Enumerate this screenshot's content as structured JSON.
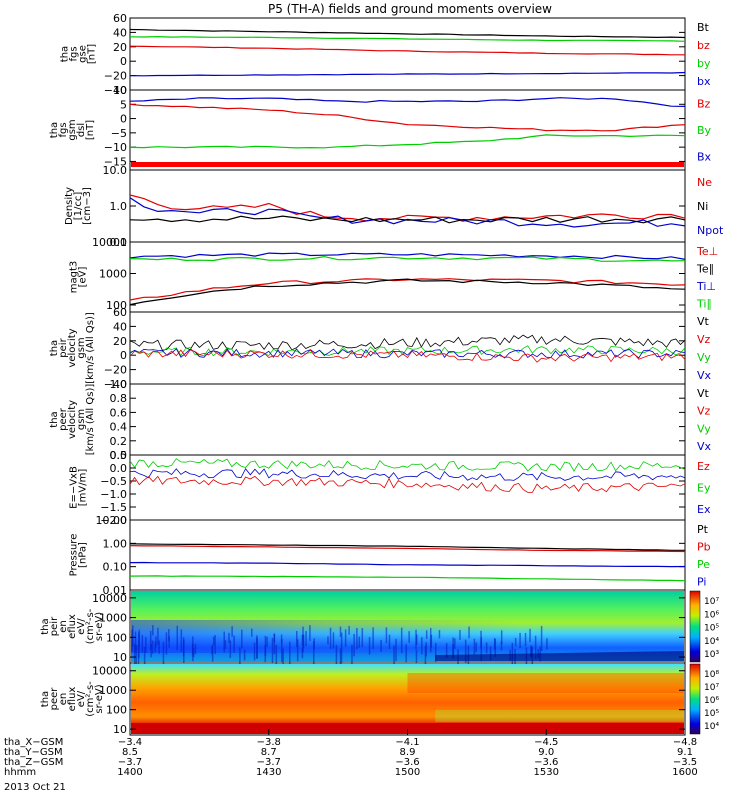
{
  "title": "P5 (TH-A) fields and ground moments overview",
  "colors": {
    "black": "#000000",
    "red": "#e00000",
    "green": "#00cc00",
    "blue": "#0000cc",
    "ticks_red": "#ff0000"
  },
  "chart_data": [
    {
      "type": "line",
      "ylabel": [
        "tha",
        "fgs",
        "gse",
        "[nT]"
      ],
      "yticks": [
        "60",
        "40",
        "20",
        "0",
        "−20",
        "−40"
      ],
      "ylim": [
        -40,
        60
      ],
      "legend": [
        {
          "name": "Bt",
          "color": "#000000"
        },
        {
          "name": "bz",
          "color": "#e00000"
        },
        {
          "name": "by",
          "color": "#00cc00"
        },
        {
          "name": "bx",
          "color": "#0000cc"
        }
      ],
      "series": [
        {
          "name": "Bt",
          "color": "#000000",
          "x": [
            1400,
            1430,
            1500,
            1530,
            1600
          ],
          "y": [
            44,
            41,
            38,
            35,
            33
          ]
        },
        {
          "name": "by",
          "color": "#00cc00",
          "x": [
            1400,
            1430,
            1500,
            1530,
            1600
          ],
          "y": [
            34,
            33,
            31,
            29,
            28
          ]
        },
        {
          "name": "bz",
          "color": "#e00000",
          "x": [
            1400,
            1430,
            1500,
            1530,
            1600
          ],
          "y": [
            21,
            18,
            14,
            11,
            9
          ]
        },
        {
          "name": "bx",
          "color": "#0000cc",
          "x": [
            1400,
            1430,
            1500,
            1530,
            1600
          ],
          "y": [
            -20,
            -19,
            -18,
            -17,
            -16
          ]
        }
      ]
    },
    {
      "type": "line",
      "ylabel": [
        "tha",
        "fgs",
        "gsm",
        "dsl",
        "[nT]"
      ],
      "yticks": [
        "10",
        "5",
        "0",
        "−5",
        "−10",
        "−15"
      ],
      "ylim": [
        -18,
        10
      ],
      "legend": [
        {
          "name": "Bz",
          "color": "#e00000"
        },
        {
          "name": "By",
          "color": "#00cc00"
        },
        {
          "name": "Bx",
          "color": "#0000cc"
        }
      ],
      "series": [
        {
          "name": "Bx",
          "color": "#0000cc",
          "x": [
            1400,
            1415,
            1430,
            1445,
            1500,
            1515,
            1530,
            1545,
            1600
          ],
          "y": [
            6,
            7,
            7,
            6,
            6,
            6,
            7,
            7,
            4
          ]
        },
        {
          "name": "Bz",
          "color": "#e00000",
          "x": [
            1400,
            1415,
            1430,
            1445,
            1500,
            1515,
            1530,
            1545,
            1600
          ],
          "y": [
            5,
            4,
            3,
            1,
            -2,
            -3,
            -4,
            -4,
            -2
          ]
        },
        {
          "name": "By",
          "color": "#00cc00",
          "x": [
            1400,
            1415,
            1430,
            1445,
            1500,
            1515,
            1530,
            1545,
            1600
          ],
          "y": [
            -10,
            -10,
            -10,
            -10,
            -9,
            -8,
            -6,
            -6,
            -6
          ]
        }
      ]
    },
    {
      "type": "line",
      "ylabel": [
        "Density",
        "[1/cc]",
        "[cm−3]"
      ],
      "yscale": "log",
      "yticks": [
        "10.0",
        "1.0",
        "0.1"
      ],
      "ylim": [
        0.1,
        10
      ],
      "legend": [
        {
          "name": "Ne",
          "color": "#e00000"
        },
        {
          "name": "Ni",
          "color": "#000000"
        },
        {
          "name": "Npot",
          "color": "#0000cc"
        }
      ],
      "series": [
        {
          "name": "Ne",
          "color": "#e00000",
          "x": [
            1400,
            1405,
            1410,
            1415,
            1420,
            1425,
            1430,
            1440,
            1500,
            1520,
            1540,
            1600
          ],
          "y": [
            2,
            1.2,
            1.0,
            0.9,
            0.8,
            0.9,
            1.0,
            0.55,
            0.45,
            0.5,
            0.55,
            0.6
          ]
        },
        {
          "name": "Npot",
          "color": "#0000cc",
          "x": [
            1400,
            1405,
            1410,
            1415,
            1420,
            1425,
            1430,
            1440,
            1500,
            1520,
            1540,
            1600
          ],
          "y": [
            1.6,
            0.9,
            0.8,
            0.6,
            0.7,
            0.8,
            0.7,
            0.45,
            0.4,
            0.38,
            0.32,
            0.35
          ]
        },
        {
          "name": "Ni",
          "color": "#000000",
          "x": [
            1400,
            1410,
            1420,
            1430,
            1440,
            1500,
            1520,
            1540,
            1600
          ],
          "y": [
            0.5,
            0.45,
            0.45,
            0.45,
            0.42,
            0.42,
            0.42,
            0.45,
            0.45
          ]
        }
      ]
    },
    {
      "type": "line",
      "ylabel": [
        "magt3",
        "[eV]"
      ],
      "yscale": "log",
      "yticks": [
        "10000",
        "1000",
        "100"
      ],
      "ylim": [
        60,
        10000
      ],
      "legend": [
        {
          "name": "Te⊥",
          "color": "#e00000"
        },
        {
          "name": "Te∥",
          "color": "#000000"
        },
        {
          "name": "Ti⊥",
          "color": "#0000cc"
        },
        {
          "name": "Ti∥",
          "color": "#00cc00"
        }
      ],
      "series": [
        {
          "name": "Ti⊥",
          "color": "#0000cc",
          "x": [
            1400,
            1430,
            1500,
            1530,
            1600
          ],
          "y": [
            3500,
            4000,
            4000,
            3700,
            3000
          ]
        },
        {
          "name": "Ti∥",
          "color": "#00cc00",
          "x": [
            1400,
            1430,
            1500,
            1530,
            1600
          ],
          "y": [
            2800,
            3000,
            3200,
            3000,
            2400
          ]
        },
        {
          "name": "Te⊥",
          "color": "#e00000",
          "x": [
            1400,
            1410,
            1420,
            1430,
            1500,
            1530,
            1600
          ],
          "y": [
            130,
            230,
            350,
            500,
            650,
            600,
            450
          ]
        },
        {
          "name": "Te∥",
          "color": "#000000",
          "x": [
            1400,
            1410,
            1420,
            1430,
            1500,
            1530,
            1600
          ],
          "y": [
            110,
            190,
            300,
            420,
            600,
            520,
            300
          ]
        }
      ]
    },
    {
      "type": "line",
      "ylabel": [
        "tha",
        "peir",
        "velocity",
        "gsm",
        "[km/s (All Qs)]"
      ],
      "yticks": [
        "60",
        "40",
        "20",
        "0",
        "−20",
        "−40"
      ],
      "ylim": [
        -40,
        60
      ],
      "legend": [
        {
          "name": "Vt",
          "color": "#000000"
        },
        {
          "name": "Vz",
          "color": "#e00000"
        },
        {
          "name": "Vy",
          "color": "#00cc00"
        },
        {
          "name": "Vx",
          "color": "#0000cc"
        }
      ],
      "series": [
        {
          "name": "Vt",
          "color": "#000000",
          "x": [
            1400,
            1430,
            1500,
            1530,
            1600
          ],
          "y": [
            14,
            14,
            17,
            22,
            16
          ]
        },
        {
          "name": "Vy",
          "color": "#00cc00",
          "x": [
            1400,
            1430,
            1500,
            1530,
            1600
          ],
          "y": [
            5,
            5,
            6,
            8,
            6
          ]
        },
        {
          "name": "Vx",
          "color": "#0000cc",
          "x": [
            1400,
            1430,
            1500,
            1530,
            1600
          ],
          "y": [
            3,
            3,
            2,
            2,
            2
          ]
        },
        {
          "name": "Vz",
          "color": "#e00000",
          "x": [
            1400,
            1430,
            1500,
            1530,
            1600
          ],
          "y": [
            2,
            2,
            0,
            -4,
            -2
          ]
        }
      ]
    },
    {
      "type": "line",
      "ylabel": [
        "tha",
        "peer",
        "velocity",
        "gsm",
        "[km/s (All Qs)]"
      ],
      "yticks": [
        "1.0",
        "0.8",
        "0.6",
        "0.4",
        "0.2",
        "0.0"
      ],
      "ylim": [
        0,
        1
      ],
      "legend": [
        {
          "name": "Vt",
          "color": "#000000"
        },
        {
          "name": "Vz",
          "color": "#e00000"
        },
        {
          "name": "Vy",
          "color": "#00cc00"
        },
        {
          "name": "Vx",
          "color": "#0000cc"
        }
      ],
      "series": []
    },
    {
      "type": "line",
      "ylabel": [
        "E=−VxB",
        "[mV/m]"
      ],
      "yticks": [
        "0.5",
        "0.0",
        "−0.5",
        "−1.0",
        "−1.5",
        "−2.0"
      ],
      "ylim": [
        -2,
        0.5
      ],
      "legend": [
        {
          "name": "Ez",
          "color": "#e00000"
        },
        {
          "name": "Ey",
          "color": "#00cc00"
        },
        {
          "name": "Ex",
          "color": "#0000cc"
        }
      ],
      "series": [
        {
          "name": "Ey",
          "color": "#00cc00",
          "x": [
            1400,
            1430,
            1500,
            1530,
            1600
          ],
          "y": [
            0.2,
            0.15,
            0.1,
            0.05,
            0.1
          ]
        },
        {
          "name": "Ex",
          "color": "#0000cc",
          "x": [
            1400,
            1430,
            1500,
            1530,
            1600
          ],
          "y": [
            -0.2,
            -0.2,
            -0.3,
            -0.35,
            -0.3
          ]
        },
        {
          "name": "Ez",
          "color": "#e00000",
          "x": [
            1400,
            1430,
            1500,
            1530,
            1600
          ],
          "y": [
            -0.5,
            -0.5,
            -0.6,
            -0.8,
            -0.7
          ]
        }
      ]
    },
    {
      "type": "line",
      "ylabel": [
        "Pressure",
        "[nPa]"
      ],
      "yscale": "log",
      "yticks": [
        "10.00",
        "1.00",
        "0.10",
        "0.01"
      ],
      "ylim": [
        0.01,
        10
      ],
      "legend": [
        {
          "name": "Pt",
          "color": "#000000"
        },
        {
          "name": "Pb",
          "color": "#e00000"
        },
        {
          "name": "Pe",
          "color": "#00cc00"
        },
        {
          "name": "Pi",
          "color": "#0000cc"
        }
      ],
      "series": [
        {
          "name": "Pt",
          "color": "#000000",
          "x": [
            1400,
            1430,
            1500,
            1530,
            1600
          ],
          "y": [
            0.95,
            0.85,
            0.75,
            0.6,
            0.5
          ]
        },
        {
          "name": "Pb",
          "color": "#e00000",
          "x": [
            1400,
            1430,
            1500,
            1530,
            1600
          ],
          "y": [
            0.8,
            0.7,
            0.6,
            0.5,
            0.45
          ]
        },
        {
          "name": "Pi",
          "color": "#0000cc",
          "x": [
            1400,
            1430,
            1500,
            1530,
            1600
          ],
          "y": [
            0.15,
            0.14,
            0.12,
            0.11,
            0.1
          ]
        },
        {
          "name": "Pe",
          "color": "#00cc00",
          "x": [
            1400,
            1430,
            1500,
            1530,
            1600
          ],
          "y": [
            0.04,
            0.038,
            0.035,
            0.03,
            0.025
          ]
        }
      ]
    },
    {
      "type": "heatmap",
      "ylabel": [
        "tha",
        "peir",
        "en",
        "eflux",
        "eV/",
        "(cm²-s-",
        "sr-eV)"
      ],
      "yscale": "log",
      "yticks": [
        "10000",
        "1000",
        "100",
        "10"
      ],
      "ylim": [
        5,
        25000
      ],
      "colorbar": [
        "10⁷",
        "10⁶",
        "10⁵",
        "10⁴",
        "10³"
      ]
    },
    {
      "type": "heatmap",
      "ylabel": [
        "tha",
        "peer",
        "en",
        "eflux",
        "eV/",
        "(cm²-s-",
        "sr-eV)"
      ],
      "yscale": "log",
      "yticks": [
        "10000",
        "1000",
        "100",
        "10"
      ],
      "ylim": [
        5,
        25000
      ],
      "colorbar": [
        "10⁸",
        "10⁷",
        "10⁶",
        "10⁵",
        "10⁴"
      ]
    }
  ],
  "xaxis": {
    "rows": [
      {
        "label": "tha_X−GSM",
        "values": [
          "−3.4",
          "−3.8",
          "−4.1",
          "−4.5",
          "−4.8"
        ]
      },
      {
        "label": "tha_Y−GSM",
        "values": [
          "8.5",
          "8.7",
          "8.9",
          "9.0",
          "9.1"
        ]
      },
      {
        "label": "tha_Z−GSM",
        "values": [
          "−3.7",
          "−3.7",
          "−3.6",
          "−3.6",
          "−3.5"
        ]
      },
      {
        "label": "hhmm",
        "values": [
          "1400",
          "1430",
          "1500",
          "1530",
          "1600"
        ]
      }
    ],
    "date": "2013 Oct 21"
  }
}
